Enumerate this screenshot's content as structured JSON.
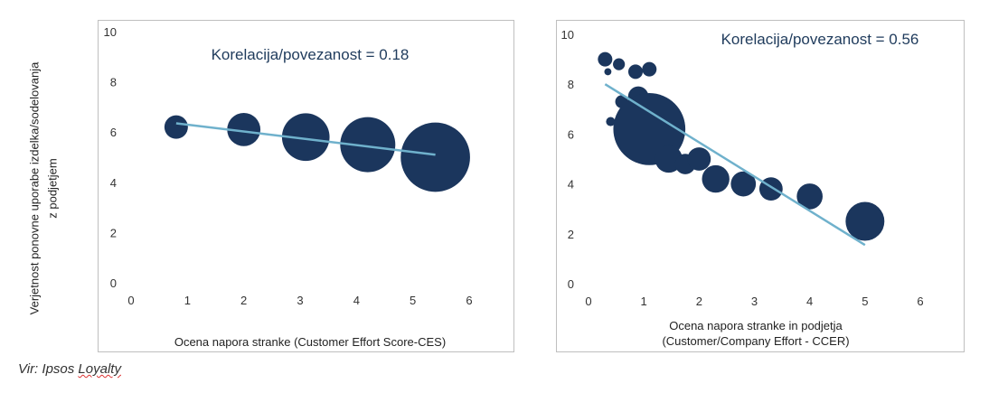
{
  "shared": {
    "y_axis_label_lines": [
      "Verjetnost ponovne  uporabe izdelka/sodelovanja",
      "z podjetjem"
    ],
    "source_prefix": "Vir: Ipsos ",
    "source_brand": "Loyalty"
  },
  "colors": {
    "bubble": "#1b365d",
    "trend": "#6fb1cc",
    "axis_text": "#333333",
    "annotation": "#1f3b5c"
  },
  "chart_data": [
    {
      "type": "scatter",
      "subtype": "bubble",
      "annotation": "Korelacija/povezanost = 0.18",
      "xlabel_lines": [
        "Ocena napora stranke (Customer Effort Score-CES)"
      ],
      "ylabel": "",
      "xlim": [
        0,
        6
      ],
      "ylim": [
        0,
        10
      ],
      "x_ticks": [
        "0",
        "1",
        "2",
        "3",
        "4",
        "5",
        "6"
      ],
      "y_ticks": [
        "0",
        "2",
        "4",
        "6",
        "8",
        "10"
      ],
      "grid": false,
      "points": [
        {
          "x": 0.8,
          "y": 6.2,
          "size": 1.0
        },
        {
          "x": 2.0,
          "y": 6.1,
          "size": 2.0
        },
        {
          "x": 3.1,
          "y": 5.8,
          "size": 4.1
        },
        {
          "x": 4.2,
          "y": 5.5,
          "size": 5.5
        },
        {
          "x": 5.4,
          "y": 5.0,
          "size": 8.7
        }
      ],
      "trendline": {
        "x1": 0.8,
        "y1": 6.35,
        "x2": 5.4,
        "y2": 5.1
      }
    },
    {
      "type": "scatter",
      "subtype": "bubble",
      "annotation": "Korelacija/povezanost = 0.56",
      "xlabel_lines": [
        "Ocena napora stranke in podjetja",
        "(Customer/Company Effort - CCER)"
      ],
      "ylabel": "",
      "xlim": [
        0,
        6
      ],
      "ylim": [
        0,
        10
      ],
      "x_ticks": [
        "0",
        "1",
        "2",
        "3",
        "4",
        "5",
        "6"
      ],
      "y_ticks": [
        "0",
        "2",
        "4",
        "6",
        "8",
        "10"
      ],
      "grid": false,
      "points": [
        {
          "x": 0.3,
          "y": 9.0,
          "size": 0.25
        },
        {
          "x": 0.55,
          "y": 8.8,
          "size": 0.17
        },
        {
          "x": 0.35,
          "y": 8.5,
          "size": 0.06
        },
        {
          "x": 0.85,
          "y": 8.5,
          "size": 0.25
        },
        {
          "x": 1.1,
          "y": 8.6,
          "size": 0.25
        },
        {
          "x": 0.9,
          "y": 7.5,
          "size": 0.5
        },
        {
          "x": 0.6,
          "y": 7.3,
          "size": 0.2
        },
        {
          "x": 0.4,
          "y": 6.5,
          "size": 0.1
        },
        {
          "x": 1.1,
          "y": 6.2,
          "size": 6.2
        },
        {
          "x": 1.45,
          "y": 5.0,
          "size": 0.9
        },
        {
          "x": 1.75,
          "y": 4.8,
          "size": 0.5
        },
        {
          "x": 2.0,
          "y": 5.0,
          "size": 0.65
        },
        {
          "x": 2.3,
          "y": 4.2,
          "size": 0.9
        },
        {
          "x": 2.8,
          "y": 4.0,
          "size": 0.75
        },
        {
          "x": 3.3,
          "y": 3.8,
          "size": 0.65
        },
        {
          "x": 4.0,
          "y": 3.5,
          "size": 0.8
        },
        {
          "x": 5.0,
          "y": 2.5,
          "size": 1.8
        }
      ],
      "trendline": {
        "x1": 0.3,
        "y1": 8.0,
        "x2": 5.0,
        "y2": 1.55
      }
    }
  ]
}
